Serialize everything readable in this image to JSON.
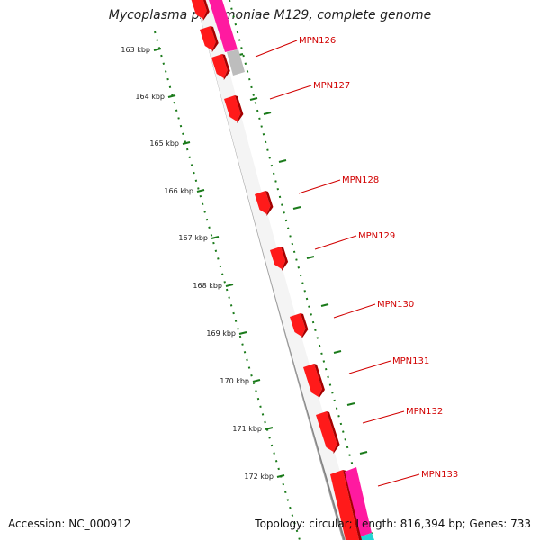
{
  "title": "Mycoplasma pneumoniae M129, complete genome",
  "footer": {
    "accession": "Accession: NC_000912",
    "summary": "Topology: circular; Length: 816,394 bp; Genes: 733"
  },
  "ticks": [
    "163 kbp",
    "164 kbp",
    "165 kbp",
    "166 kbp",
    "167 kbp",
    "168 kbp",
    "169 kbp",
    "170 kbp",
    "171 kbp",
    "172 kbp"
  ],
  "genes": [
    "MPN126",
    "MPN127",
    "MPN128",
    "MPN129",
    "MPN130",
    "MPN131",
    "MPN132",
    "MPN133"
  ],
  "colors": {
    "gene": "#ff1a1a",
    "gene_dark": "#a50000",
    "magenta": "#ff1aa0",
    "gray_gene": "#bdbdbd",
    "cyan": "#22d5d5",
    "backbone": "#808080",
    "tick": "#1a7a1a",
    "label": "#d10000"
  }
}
